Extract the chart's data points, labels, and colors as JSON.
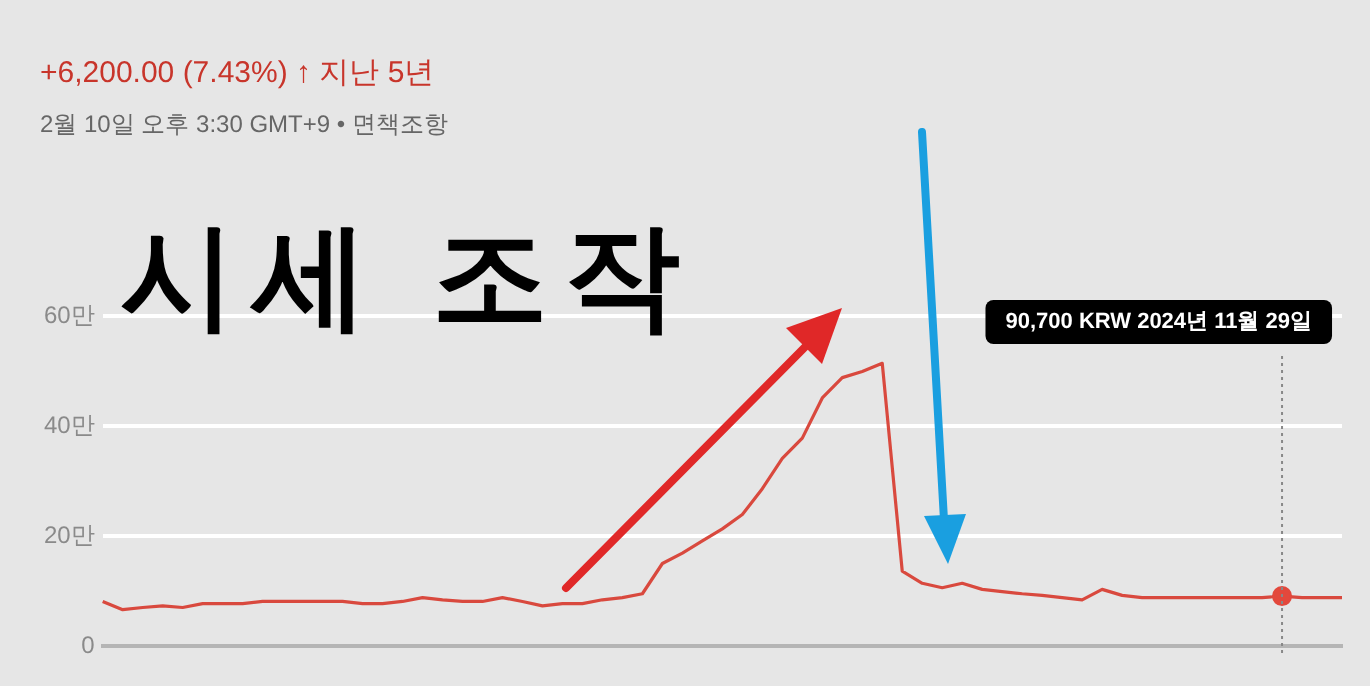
{
  "chart_data": {
    "type": "line",
    "title": "+6,200.00 (7.43%) ↑ 지난 5년",
    "subtitle": "2월 10일 오후 3:30 GMT+9 • 면책조항",
    "annotations": [
      "시세 조작",
      "90,700 KRW 2024년 11월 29일"
    ],
    "categories": [
      null,
      null,
      null,
      null,
      null,
      null,
      null,
      null,
      null,
      null,
      null,
      null,
      null,
      null,
      null,
      null,
      null,
      null,
      null,
      null,
      null,
      null,
      null,
      null,
      null,
      null,
      null,
      null,
      null,
      null,
      null,
      null,
      null,
      null,
      null,
      null,
      null,
      null,
      null,
      null,
      null,
      null,
      null,
      null,
      null,
      null,
      null,
      null,
      null,
      null,
      null,
      null,
      null,
      null,
      null,
      null,
      null,
      null,
      null,
      null,
      null,
      null,
      null
    ],
    "series": [
      {
        "color": "#d9493e",
        "values": [
          8.1,
          6.6,
          7,
          7.3,
          7,
          7.7,
          7.7,
          7.7,
          8.1,
          8.1,
          8.1,
          8.1,
          8.1,
          7.7,
          7.7,
          8.1,
          8.8,
          8.4,
          8.1,
          8.1,
          8.8,
          8.1,
          7.3,
          7.7,
          7.7,
          8.4,
          8.8,
          9.5,
          15,
          16.9,
          19.1,
          21.3,
          23.9,
          28.6,
          34.1,
          37.8,
          45.1,
          48.8,
          49.9,
          51.4,
          13.6,
          11.4,
          10.6,
          11.4,
          10.3,
          9.9,
          9.5,
          9.2,
          8.8,
          8.4,
          10.3,
          9.2,
          8.8,
          8.8,
          8.8,
          8.8,
          8.8,
          8.8,
          8.8,
          9.07,
          8.8,
          8.8,
          8.8
        ]
      },
      {
        "type": "scatter",
        "color": "#e3483c",
        "values": [
          null,
          null,
          null,
          null,
          null,
          null,
          null,
          null,
          null,
          null,
          null,
          null,
          null,
          null,
          null,
          null,
          null,
          null,
          null,
          null,
          null,
          null,
          null,
          null,
          null,
          null,
          null,
          null,
          null,
          null,
          null,
          null,
          null,
          null,
          null,
          null,
          null,
          null,
          null,
          null,
          null,
          null,
          null,
          null,
          null,
          null,
          null,
          null,
          null,
          null,
          null,
          null,
          null,
          null,
          null,
          null,
          null,
          null,
          null,
          9.07,
          null,
          null,
          null
        ]
      }
    ],
    "ylim": [
      0,
      60
    ],
    "yticks": [
      0,
      {
        "value": 20,
        "label": "20만"
      },
      {
        "value": 40,
        "label": "40만"
      },
      {
        "value": 60,
        "label": "60만"
      }
    ],
    "grid": "y",
    "legend": false
  }
}
